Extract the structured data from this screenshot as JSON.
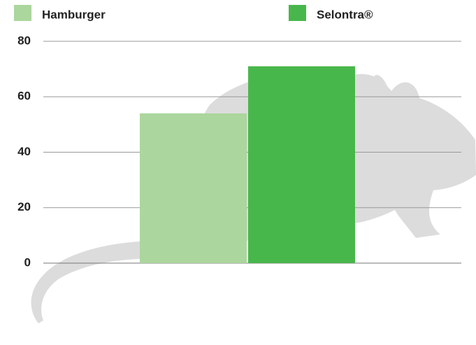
{
  "chart_data": {
    "type": "bar",
    "categories": [
      null
    ],
    "series": [
      {
        "name": "Hamburger",
        "color": "#abd69d",
        "values": [
          54
        ]
      },
      {
        "name": "Selontra®",
        "color": "#48b74b",
        "values": [
          71
        ]
      }
    ],
    "ylim": [
      0,
      80
    ],
    "yticks": [
      0,
      20,
      40,
      60,
      80
    ],
    "grid": true
  }
}
